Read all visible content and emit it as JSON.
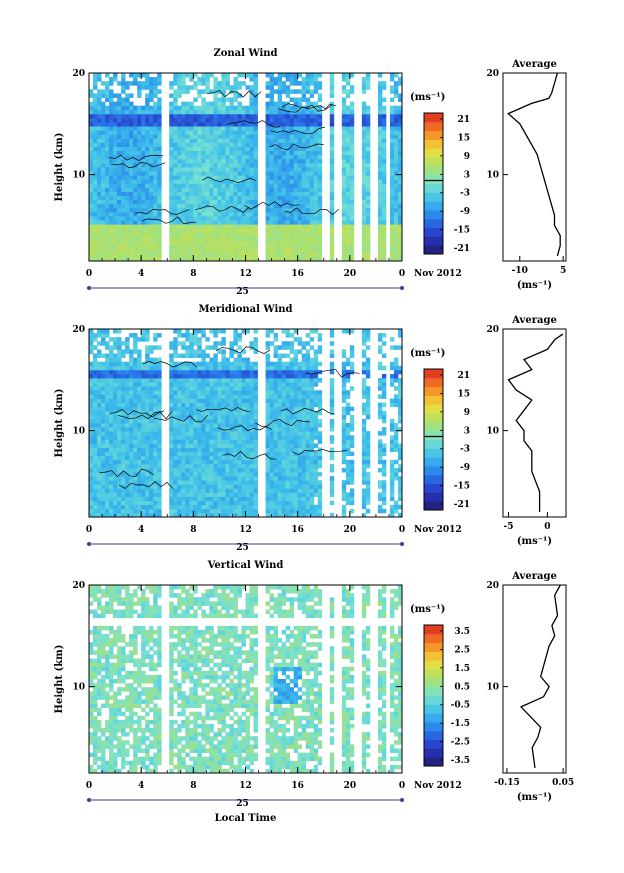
{
  "chart_data": [
    {
      "type": "heatmap",
      "title": "Zonal Wind",
      "ylabel": "Height (km)",
      "x_tick_labels": [
        "0",
        "4",
        "8",
        "12",
        "16",
        "20",
        "0"
      ],
      "y_tick_labels": [
        "10",
        "20"
      ],
      "date_label": "25",
      "month_label": "Nov 2012",
      "colorbar": {
        "unit_label": "(ms⁻¹)",
        "ticks": [
          "21",
          "15",
          "9",
          "3",
          "-3",
          "-9",
          "-15",
          "-21"
        ],
        "range": [
          -24,
          24
        ]
      },
      "average": {
        "title": "Average",
        "unit_label": "(ms⁻¹)",
        "x_tick_labels": [
          "-10",
          "5"
        ],
        "y_tick_labels": [
          "10",
          "20"
        ],
        "profile": [
          [
            3,
            2
          ],
          [
            4,
            3
          ],
          [
            4,
            4
          ],
          [
            2,
            5
          ],
          [
            2,
            6
          ],
          [
            1,
            7
          ],
          [
            0,
            8
          ],
          [
            -1,
            9
          ],
          [
            -2,
            10
          ],
          [
            -3,
            11
          ],
          [
            -4,
            12
          ],
          [
            -6,
            13
          ],
          [
            -8,
            14
          ],
          [
            -10,
            15
          ],
          [
            -14,
            16
          ],
          [
            -6,
            17
          ],
          [
            0,
            17.5
          ],
          [
            1,
            18
          ],
          [
            2,
            19
          ],
          [
            3,
            20
          ]
        ]
      },
      "x_range": [
        0,
        24
      ],
      "y_range": [
        1.5,
        20
      ]
    },
    {
      "type": "heatmap",
      "title": "Meridional Wind",
      "ylabel": "Height (km)",
      "x_tick_labels": [
        "0",
        "4",
        "8",
        "12",
        "16",
        "20",
        "0"
      ],
      "y_tick_labels": [
        "10",
        "20"
      ],
      "date_label": "25",
      "month_label": "Nov 2012",
      "colorbar": {
        "unit_label": "(ms⁻¹)",
        "ticks": [
          "21",
          "15",
          "9",
          "3",
          "-3",
          "-9",
          "-15",
          "-21"
        ],
        "range": [
          -24,
          24
        ]
      },
      "average": {
        "title": "Average",
        "unit_label": "(ms⁻¹)",
        "x_tick_labels": [
          "-5",
          "0"
        ],
        "y_tick_labels": [
          "10",
          "20"
        ],
        "profile": [
          [
            -1,
            2
          ],
          [
            -1,
            4
          ],
          [
            -2,
            6
          ],
          [
            -2,
            8
          ],
          [
            -3,
            9
          ],
          [
            -3,
            10
          ],
          [
            -4,
            11
          ],
          [
            -3,
            12
          ],
          [
            -2,
            13
          ],
          [
            -4,
            14
          ],
          [
            -5,
            15
          ],
          [
            -2,
            16
          ],
          [
            -3,
            17
          ],
          [
            0,
            18
          ],
          [
            1,
            19
          ],
          [
            2,
            19.5
          ]
        ]
      },
      "x_range": [
        0,
        24
      ],
      "y_range": [
        1.5,
        20
      ]
    },
    {
      "type": "heatmap",
      "title": "Vertical Wind",
      "ylabel": "Height (km)",
      "xlabel": "Local Time",
      "x_tick_labels": [
        "0",
        "4",
        "8",
        "12",
        "16",
        "20",
        "0"
      ],
      "y_tick_labels": [
        "10",
        "20"
      ],
      "date_label": "25",
      "month_label": "Nov 2012",
      "colorbar": {
        "unit_label": "(ms⁻¹)",
        "ticks": [
          "3.5",
          "2.5",
          "1.5",
          "0.5",
          "-0.5",
          "-1.5",
          "-2.5",
          "-3.5"
        ],
        "range": [
          -4,
          4
        ]
      },
      "average": {
        "title": "Average",
        "unit_label": "(ms⁻¹)",
        "x_tick_labels": [
          "-0.15",
          "0.05"
        ],
        "y_tick_labels": [
          "10",
          "20"
        ],
        "profile": [
          [
            -0.05,
            2
          ],
          [
            -0.06,
            4
          ],
          [
            -0.04,
            5
          ],
          [
            -0.03,
            6
          ],
          [
            -0.1,
            8
          ],
          [
            -0.02,
            9
          ],
          [
            0.0,
            10
          ],
          [
            -0.03,
            11
          ],
          [
            -0.01,
            13
          ],
          [
            0.0,
            14
          ],
          [
            0.02,
            15
          ],
          [
            0.01,
            16
          ],
          [
            0.03,
            17
          ],
          [
            0.02,
            19
          ],
          [
            0.04,
            20
          ]
        ]
      },
      "x_range": [
        0,
        24
      ],
      "y_range": [
        1.5,
        20
      ]
    }
  ]
}
